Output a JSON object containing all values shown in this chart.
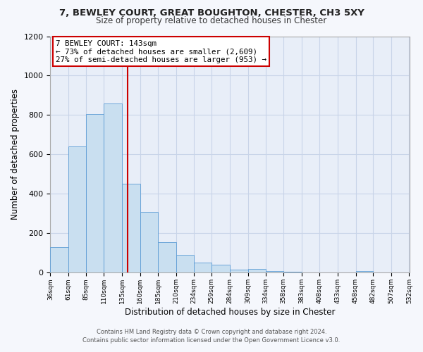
{
  "title1": "7, BEWLEY COURT, GREAT BOUGHTON, CHESTER, CH3 5XY",
  "title2": "Size of property relative to detached houses in Chester",
  "xlabel": "Distribution of detached houses by size in Chester",
  "ylabel": "Number of detached properties",
  "bar_edges": [
    36,
    61,
    85,
    110,
    135,
    160,
    185,
    210,
    234,
    259,
    284,
    309,
    334,
    358,
    383,
    408,
    433,
    458,
    482,
    507,
    532
  ],
  "bar_heights": [
    130,
    640,
    805,
    860,
    450,
    310,
    155,
    90,
    50,
    40,
    15,
    20,
    10,
    5,
    2,
    2,
    0,
    10,
    0,
    0,
    0
  ],
  "bar_color": "#c9dff0",
  "bar_edge_color": "#5b9bd5",
  "vline_x": 143,
  "vline_color": "#cc0000",
  "ylim": [
    0,
    1200
  ],
  "yticks": [
    0,
    200,
    400,
    600,
    800,
    1000,
    1200
  ],
  "xtick_labels": [
    "36sqm",
    "61sqm",
    "85sqm",
    "110sqm",
    "135sqm",
    "160sqm",
    "185sqm",
    "210sqm",
    "234sqm",
    "259sqm",
    "284sqm",
    "309sqm",
    "334sqm",
    "358sqm",
    "383sqm",
    "408sqm",
    "433sqm",
    "458sqm",
    "482sqm",
    "507sqm",
    "532sqm"
  ],
  "annotation_title": "7 BEWLEY COURT: 143sqm",
  "annotation_line1": "← 73% of detached houses are smaller (2,609)",
  "annotation_line2": "27% of semi-detached houses are larger (953) →",
  "annotation_box_facecolor": "#ffffff",
  "annotation_box_edgecolor": "#cc0000",
  "grid_color": "#c8d4e8",
  "plot_bg_color": "#e8eef8",
  "fig_bg_color": "#f5f7fc",
  "footnote1": "Contains HM Land Registry data © Crown copyright and database right 2024.",
  "footnote2": "Contains public sector information licensed under the Open Government Licence v3.0."
}
